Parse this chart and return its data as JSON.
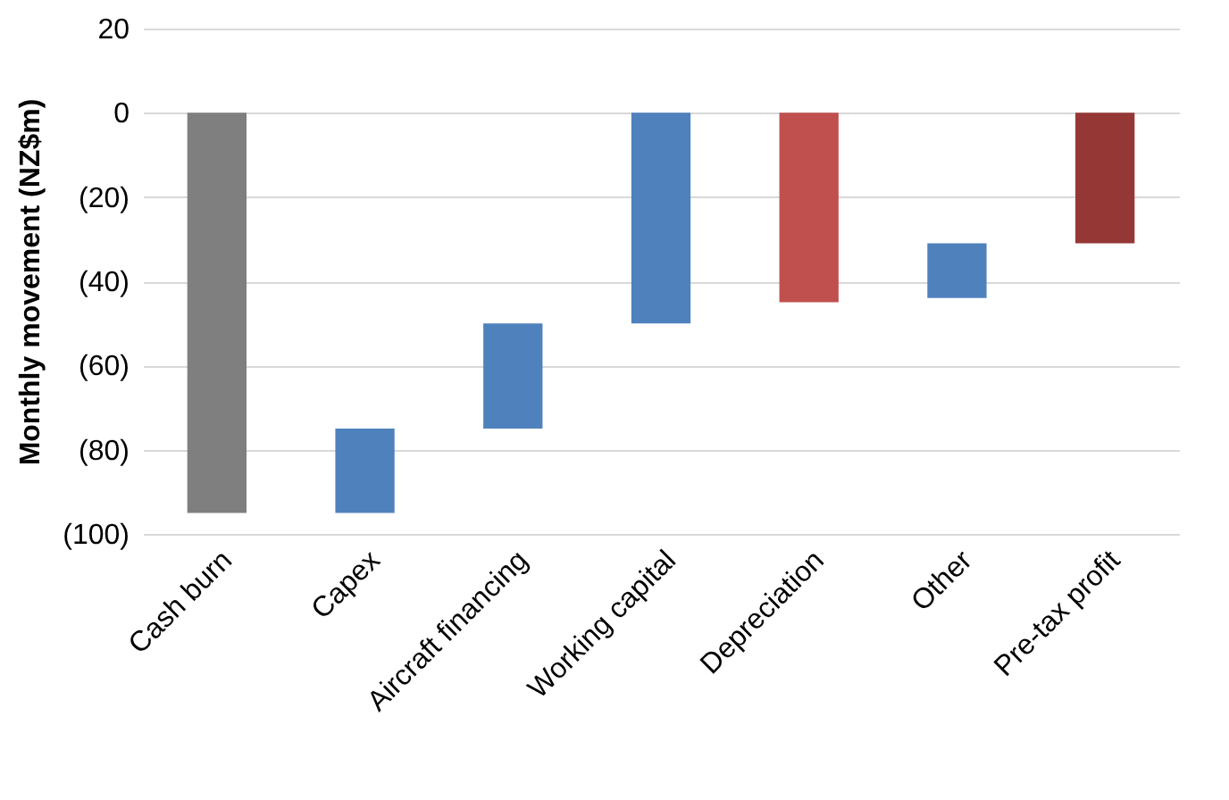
{
  "chart_data": {
    "type": "bar",
    "ylabel": "Monthly movement (NZ$m)",
    "categories": [
      "Cash burn",
      "Capex",
      "Aircraft financing",
      "Working capital",
      "Depreciation",
      "Other",
      "Pre-tax profit"
    ],
    "values": [
      -95,
      20,
      25,
      50,
      -45,
      13,
      -31
    ],
    "base": [
      0,
      -95,
      -75,
      -50,
      0,
      -44,
      0
    ],
    "colors": [
      "#7f7f7f",
      "#4f81bd",
      "#4f81bd",
      "#4f81bd",
      "#c0504d",
      "#4f81bd",
      "#953735"
    ],
    "ylim": [
      -100,
      20
    ],
    "yticks": [
      {
        "value": -100,
        "label": "(100)"
      },
      {
        "value": -80,
        "label": "(80)"
      },
      {
        "value": -60,
        "label": "(60)"
      },
      {
        "value": -40,
        "label": "(40)"
      },
      {
        "value": -20,
        "label": "(20)"
      },
      0,
      20
    ],
    "grid": "y"
  }
}
